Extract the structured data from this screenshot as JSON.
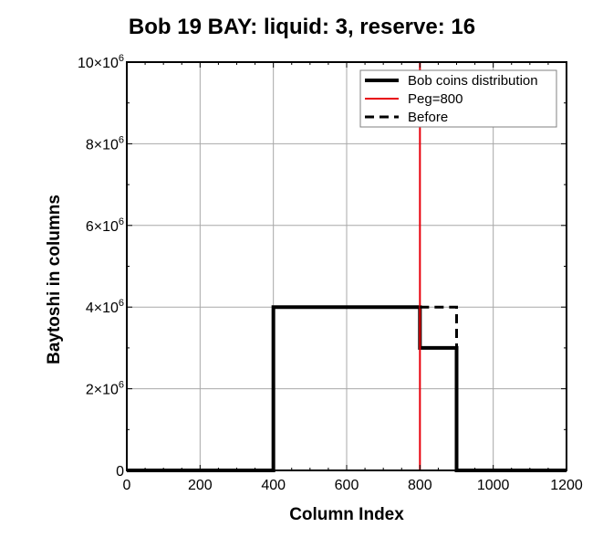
{
  "chart_data": {
    "type": "line",
    "title": "Bob 19 BAY: liquid: 3, reserve: 16",
    "xlabel": "Column Index",
    "ylabel": "Baytoshi in columns",
    "xlim": [
      0,
      1200
    ],
    "ylim": [
      0,
      10000000
    ],
    "x_ticks": [
      {
        "value": 0,
        "label": "0"
      },
      {
        "value": 200,
        "label": "200"
      },
      {
        "value": 400,
        "label": "400"
      },
      {
        "value": 600,
        "label": "600"
      },
      {
        "value": 800,
        "label": "800"
      },
      {
        "value": 1000,
        "label": "1000"
      },
      {
        "value": 1200,
        "label": "1200"
      }
    ],
    "y_ticks": [
      {
        "value": 0,
        "mantissa": "0",
        "exp": ""
      },
      {
        "value": 2000000,
        "mantissa": "2×10",
        "exp": "6"
      },
      {
        "value": 4000000,
        "mantissa": "4×10",
        "exp": "6"
      },
      {
        "value": 6000000,
        "mantissa": "6×10",
        "exp": "6"
      },
      {
        "value": 8000000,
        "mantissa": "8×10",
        "exp": "6"
      },
      {
        "value": 10000000,
        "mantissa": "10×10",
        "exp": "6"
      }
    ],
    "grid": true,
    "legend_position": "top-right",
    "series": [
      {
        "name": "Bob coins distribution",
        "color": "#000000",
        "style": "solid-thick",
        "points": [
          [
            0,
            0
          ],
          [
            400,
            0
          ],
          [
            400,
            4000000
          ],
          [
            800,
            4000000
          ],
          [
            800,
            3000000
          ],
          [
            900,
            3000000
          ],
          [
            900,
            0
          ],
          [
            1200,
            0
          ]
        ]
      },
      {
        "name": "Peg=800",
        "color": "#e8000b",
        "style": "vertical-line",
        "x": 800
      },
      {
        "name": "Before",
        "color": "#000000",
        "style": "dashed",
        "points": [
          [
            800,
            4000000
          ],
          [
            900,
            4000000
          ],
          [
            900,
            3000000
          ]
        ]
      }
    ]
  }
}
